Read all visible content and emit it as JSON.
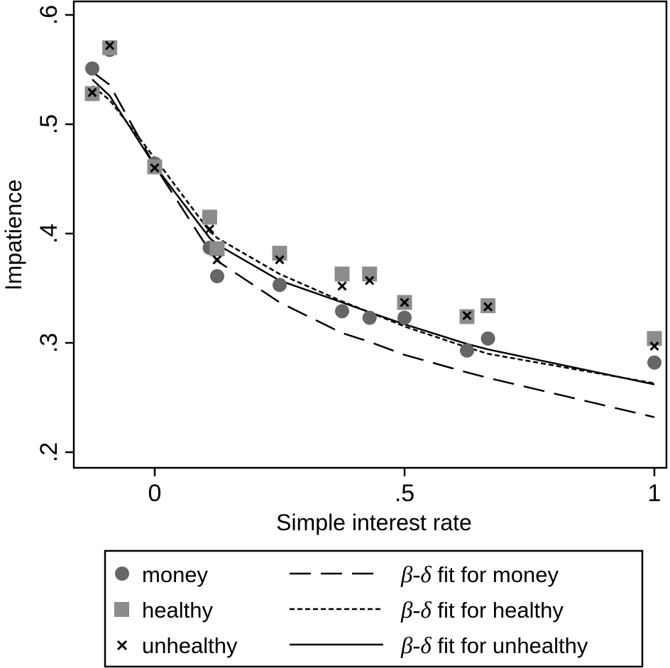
{
  "chart_data": {
    "type": "scatter",
    "xlabel": "Simple interest rate",
    "ylabel": "Impatience",
    "xlim": [
      -0.16,
      1.02
    ],
    "ylim": [
      0.18,
      0.615
    ],
    "xticks": [
      0,
      0.5,
      1
    ],
    "xtick_labels": [
      "0",
      ".5",
      "1"
    ],
    "yticks": [
      0.2,
      0.3,
      0.4,
      0.5,
      0.6
    ],
    "ytick_labels": [
      ".2",
      ".3",
      ".4",
      ".5",
      ".6"
    ],
    "grid": false,
    "legend_position": "bottom",
    "scatter_series": [
      {
        "name": "money",
        "marker": "circle",
        "color": "#666666",
        "points": [
          [
            -0.125,
            0.551
          ],
          [
            -0.09,
            0.568
          ],
          [
            0,
            0.464
          ],
          [
            0.11,
            0.387
          ],
          [
            0.125,
            0.361
          ],
          [
            0.25,
            0.353
          ],
          [
            0.375,
            0.329
          ],
          [
            0.43,
            0.323
          ],
          [
            0.5,
            0.323
          ],
          [
            0.625,
            0.293
          ],
          [
            0.667,
            0.304
          ],
          [
            1.0,
            0.282
          ]
        ]
      },
      {
        "name": "healthy",
        "marker": "square",
        "color": "#8c8c8c",
        "points": [
          [
            -0.125,
            0.528
          ],
          [
            -0.09,
            0.57
          ],
          [
            0,
            0.461
          ],
          [
            0.11,
            0.415
          ],
          [
            0.125,
            0.386
          ],
          [
            0.25,
            0.382
          ],
          [
            0.375,
            0.363
          ],
          [
            0.43,
            0.363
          ],
          [
            0.5,
            0.337
          ],
          [
            0.625,
            0.324
          ],
          [
            0.667,
            0.334
          ],
          [
            1.0,
            0.304
          ]
        ]
      },
      {
        "name": "unhealthy",
        "marker": "x",
        "color": "#000000",
        "points": [
          [
            -0.125,
            0.529
          ],
          [
            -0.09,
            0.572
          ],
          [
            0,
            0.46
          ],
          [
            0.11,
            0.404
          ],
          [
            0.125,
            0.376
          ],
          [
            0.25,
            0.376
          ],
          [
            0.375,
            0.352
          ],
          [
            0.43,
            0.357
          ],
          [
            0.5,
            0.337
          ],
          [
            0.625,
            0.325
          ],
          [
            0.667,
            0.333
          ],
          [
            1.0,
            0.297
          ]
        ]
      }
    ],
    "line_series": [
      {
        "name": "β-δ fit for money",
        "dash": "long-dash",
        "x": [
          -0.125,
          -0.09,
          0,
          0.11,
          0.125,
          0.25,
          0.375,
          0.43,
          0.5,
          0.625,
          0.667,
          1.0
        ],
        "y": [
          0.548,
          0.536,
          0.462,
          0.384,
          0.375,
          0.337,
          0.309,
          0.301,
          0.289,
          0.273,
          0.268,
          0.232
        ]
      },
      {
        "name": "β-δ fit for healthy",
        "dash": "short-dash",
        "x": [
          -0.125,
          -0.09,
          0,
          0.11,
          0.125,
          0.25,
          0.375,
          0.43,
          0.5,
          0.625,
          0.667,
          1.0
        ],
        "y": [
          0.535,
          0.522,
          0.469,
          0.402,
          0.396,
          0.363,
          0.338,
          0.328,
          0.315,
          0.296,
          0.29,
          0.263
        ]
      },
      {
        "name": "β-δ fit for unhealthy",
        "dash": "solid",
        "x": [
          -0.125,
          -0.09,
          0,
          0.11,
          0.125,
          0.25,
          0.375,
          0.43,
          0.5,
          0.625,
          0.667,
          1.0
        ],
        "y": [
          0.541,
          0.526,
          0.462,
          0.396,
          0.39,
          0.357,
          0.337,
          0.328,
          0.317,
          0.299,
          0.294,
          0.262
        ]
      }
    ]
  },
  "legend": {
    "items": [
      {
        "label": "money"
      },
      {
        "label": "healthy"
      },
      {
        "label": "unhealthy"
      },
      {
        "prefix": "β-δ",
        "label": "fit for money"
      },
      {
        "prefix": "β-δ",
        "label": "fit for healthy"
      },
      {
        "prefix": "β-δ",
        "label": "fit for unhealthy"
      }
    ]
  }
}
